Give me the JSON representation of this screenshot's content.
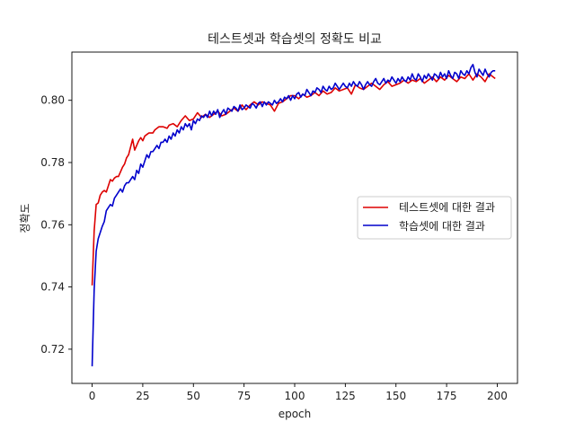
{
  "chart_data": {
    "type": "line",
    "title": "테스트셋과 학습셋의 정확도 비교",
    "xlabel": "epoch",
    "ylabel": "정확도",
    "xlim": [
      -10,
      210
    ],
    "ylim": [
      0.709,
      0.8155
    ],
    "xticks": [
      0,
      25,
      50,
      75,
      100,
      125,
      150,
      175,
      200
    ],
    "yticks": [
      0.72,
      0.74,
      0.76,
      0.78,
      0.8
    ],
    "ytick_labels": [
      "0.72",
      "0.74",
      "0.76",
      "0.78",
      "0.80"
    ],
    "grid": false,
    "legend": "center-right",
    "series": [
      {
        "name": "테스트셋에 대한 결과",
        "color": "#dd0000",
        "points": [
          [
            0,
            0.7405
          ],
          [
            1,
            0.758
          ],
          [
            2,
            0.7665
          ],
          [
            3,
            0.767
          ],
          [
            4,
            0.7695
          ],
          [
            5,
            0.7705
          ],
          [
            6,
            0.771
          ],
          [
            7,
            0.7705
          ],
          [
            8,
            0.7725
          ],
          [
            9,
            0.7745
          ],
          [
            10,
            0.774
          ],
          [
            11,
            0.775
          ],
          [
            12,
            0.7755
          ],
          [
            13,
            0.7755
          ],
          [
            14,
            0.777
          ],
          [
            15,
            0.7785
          ],
          [
            16,
            0.7795
          ],
          [
            17,
            0.7815
          ],
          [
            18,
            0.7825
          ],
          [
            19,
            0.785
          ],
          [
            20,
            0.7875
          ],
          [
            21,
            0.784
          ],
          [
            22,
            0.7855
          ],
          [
            23,
            0.787
          ],
          [
            24,
            0.788
          ],
          [
            25,
            0.787
          ],
          [
            26,
            0.7885
          ],
          [
            27,
            0.789
          ],
          [
            28,
            0.7895
          ],
          [
            29,
            0.7895
          ],
          [
            30,
            0.7895
          ],
          [
            31,
            0.7905
          ],
          [
            32,
            0.791
          ],
          [
            33,
            0.7915
          ],
          [
            35,
            0.7915
          ],
          [
            37,
            0.791
          ],
          [
            38,
            0.792
          ],
          [
            40,
            0.7925
          ],
          [
            42,
            0.7915
          ],
          [
            44,
            0.7935
          ],
          [
            46,
            0.795
          ],
          [
            48,
            0.7935
          ],
          [
            50,
            0.794
          ],
          [
            52,
            0.796
          ],
          [
            54,
            0.7945
          ],
          [
            56,
            0.7955
          ],
          [
            58,
            0.7945
          ],
          [
            60,
            0.7955
          ],
          [
            62,
            0.7965
          ],
          [
            64,
            0.795
          ],
          [
            66,
            0.7955
          ],
          [
            68,
            0.7965
          ],
          [
            70,
            0.7975
          ],
          [
            72,
            0.7965
          ],
          [
            74,
            0.7985
          ],
          [
            76,
            0.797
          ],
          [
            78,
            0.7985
          ],
          [
            80,
            0.7995
          ],
          [
            82,
            0.7985
          ],
          [
            84,
            0.7995
          ],
          [
            86,
            0.799
          ],
          [
            88,
            0.7985
          ],
          [
            90,
            0.7965
          ],
          [
            92,
            0.799
          ],
          [
            94,
            0.7995
          ],
          [
            96,
            0.8005
          ],
          [
            98,
            0.8015
          ],
          [
            100,
            0.8015
          ],
          [
            102,
            0.8005
          ],
          [
            104,
            0.802
          ],
          [
            106,
            0.801
          ],
          [
            108,
            0.8015
          ],
          [
            110,
            0.8025
          ],
          [
            112,
            0.8015
          ],
          [
            114,
            0.803
          ],
          [
            116,
            0.802
          ],
          [
            118,
            0.8025
          ],
          [
            120,
            0.804
          ],
          [
            122,
            0.803
          ],
          [
            124,
            0.8035
          ],
          [
            126,
            0.804
          ],
          [
            128,
            0.802
          ],
          [
            130,
            0.805
          ],
          [
            132,
            0.804
          ],
          [
            134,
            0.8035
          ],
          [
            136,
            0.8045
          ],
          [
            138,
            0.8055
          ],
          [
            140,
            0.8045
          ],
          [
            142,
            0.8035
          ],
          [
            144,
            0.805
          ],
          [
            146,
            0.806
          ],
          [
            148,
            0.8045
          ],
          [
            150,
            0.805
          ],
          [
            152,
            0.8055
          ],
          [
            154,
            0.8065
          ],
          [
            156,
            0.8055
          ],
          [
            158,
            0.8065
          ],
          [
            160,
            0.806
          ],
          [
            162,
            0.807
          ],
          [
            164,
            0.8055
          ],
          [
            166,
            0.8065
          ],
          [
            168,
            0.8075
          ],
          [
            170,
            0.806
          ],
          [
            172,
            0.8075
          ],
          [
            174,
            0.8065
          ],
          [
            176,
            0.808
          ],
          [
            178,
            0.807
          ],
          [
            180,
            0.806
          ],
          [
            182,
            0.8075
          ],
          [
            184,
            0.807
          ],
          [
            186,
            0.8085
          ],
          [
            188,
            0.8065
          ],
          [
            190,
            0.8085
          ],
          [
            192,
            0.8075
          ],
          [
            194,
            0.806
          ],
          [
            196,
            0.8085
          ],
          [
            198,
            0.8075
          ],
          [
            199,
            0.807
          ]
        ]
      },
      {
        "name": "학습셋에 대한 결과",
        "color": "#0000cc",
        "points": [
          [
            0,
            0.7145
          ],
          [
            1,
            0.739
          ],
          [
            2,
            0.7515
          ],
          [
            3,
            0.7555
          ],
          [
            4,
            0.7575
          ],
          [
            5,
            0.7595
          ],
          [
            6,
            0.761
          ],
          [
            7,
            0.7645
          ],
          [
            8,
            0.7655
          ],
          [
            9,
            0.7665
          ],
          [
            10,
            0.766
          ],
          [
            11,
            0.7685
          ],
          [
            12,
            0.7695
          ],
          [
            13,
            0.7705
          ],
          [
            14,
            0.7715
          ],
          [
            15,
            0.7705
          ],
          [
            16,
            0.7725
          ],
          [
            17,
            0.7735
          ],
          [
            18,
            0.7735
          ],
          [
            19,
            0.7745
          ],
          [
            20,
            0.7755
          ],
          [
            21,
            0.7745
          ],
          [
            22,
            0.7775
          ],
          [
            23,
            0.7765
          ],
          [
            24,
            0.7795
          ],
          [
            25,
            0.7785
          ],
          [
            26,
            0.7805
          ],
          [
            27,
            0.7825
          ],
          [
            28,
            0.7815
          ],
          [
            29,
            0.7835
          ],
          [
            30,
            0.7835
          ],
          [
            31,
            0.7845
          ],
          [
            32,
            0.7855
          ],
          [
            33,
            0.7845
          ],
          [
            34,
            0.7865
          ],
          [
            35,
            0.7865
          ],
          [
            36,
            0.7875
          ],
          [
            37,
            0.7865
          ],
          [
            38,
            0.7885
          ],
          [
            39,
            0.7875
          ],
          [
            40,
            0.7895
          ],
          [
            41,
            0.7885
          ],
          [
            42,
            0.7905
          ],
          [
            43,
            0.7895
          ],
          [
            44,
            0.7915
          ],
          [
            45,
            0.7905
          ],
          [
            46,
            0.7925
          ],
          [
            47,
            0.7915
          ],
          [
            48,
            0.7925
          ],
          [
            49,
            0.7905
          ],
          [
            50,
            0.7935
          ],
          [
            51,
            0.7925
          ],
          [
            52,
            0.794
          ],
          [
            53,
            0.7935
          ],
          [
            54,
            0.795
          ],
          [
            55,
            0.7945
          ],
          [
            56,
            0.7955
          ],
          [
            57,
            0.7945
          ],
          [
            58,
            0.7965
          ],
          [
            59,
            0.795
          ],
          [
            60,
            0.7965
          ],
          [
            61,
            0.7955
          ],
          [
            62,
            0.797
          ],
          [
            63,
            0.7945
          ],
          [
            64,
            0.796
          ],
          [
            65,
            0.797
          ],
          [
            66,
            0.7955
          ],
          [
            67,
            0.7975
          ],
          [
            68,
            0.797
          ],
          [
            69,
            0.7965
          ],
          [
            70,
            0.798
          ],
          [
            71,
            0.7975
          ],
          [
            72,
            0.7965
          ],
          [
            73,
            0.7985
          ],
          [
            74,
            0.797
          ],
          [
            75,
            0.7975
          ],
          [
            76,
            0.7985
          ],
          [
            77,
            0.798
          ],
          [
            78,
            0.7975
          ],
          [
            79,
            0.799
          ],
          [
            80,
            0.7985
          ],
          [
            81,
            0.7975
          ],
          [
            82,
            0.799
          ],
          [
            83,
            0.7995
          ],
          [
            84,
            0.798
          ],
          [
            85,
            0.7995
          ],
          [
            86,
            0.7985
          ],
          [
            87,
            0.7995
          ],
          [
            88,
            0.799
          ],
          [
            89,
            0.7985
          ],
          [
            90,
            0.8
          ],
          [
            91,
            0.799
          ],
          [
            92,
            0.7995
          ],
          [
            93,
            0.8005
          ],
          [
            94,
            0.7995
          ],
          [
            95,
            0.801
          ],
          [
            96,
            0.8005
          ],
          [
            97,
            0.8015
          ],
          [
            98,
            0.8
          ],
          [
            99,
            0.8015
          ],
          [
            100,
            0.8005
          ],
          [
            101,
            0.802
          ],
          [
            102,
            0.8025
          ],
          [
            103,
            0.801
          ],
          [
            104,
            0.802
          ],
          [
            105,
            0.8015
          ],
          [
            106,
            0.8035
          ],
          [
            107,
            0.8025
          ],
          [
            108,
            0.8015
          ],
          [
            109,
            0.803
          ],
          [
            110,
            0.8025
          ],
          [
            111,
            0.804
          ],
          [
            112,
            0.8035
          ],
          [
            113,
            0.8025
          ],
          [
            114,
            0.8045
          ],
          [
            115,
            0.8035
          ],
          [
            116,
            0.803
          ],
          [
            117,
            0.8045
          ],
          [
            118,
            0.8035
          ],
          [
            119,
            0.804
          ],
          [
            120,
            0.8055
          ],
          [
            121,
            0.8045
          ],
          [
            122,
            0.8035
          ],
          [
            123,
            0.8045
          ],
          [
            124,
            0.8055
          ],
          [
            125,
            0.8045
          ],
          [
            126,
            0.804
          ],
          [
            127,
            0.8055
          ],
          [
            128,
            0.8045
          ],
          [
            129,
            0.806
          ],
          [
            130,
            0.805
          ],
          [
            131,
            0.8045
          ],
          [
            132,
            0.806
          ],
          [
            133,
            0.805
          ],
          [
            134,
            0.8035
          ],
          [
            135,
            0.805
          ],
          [
            136,
            0.806
          ],
          [
            137,
            0.805
          ],
          [
            138,
            0.8045
          ],
          [
            139,
            0.806
          ],
          [
            140,
            0.807
          ],
          [
            141,
            0.8055
          ],
          [
            142,
            0.805
          ],
          [
            143,
            0.806
          ],
          [
            144,
            0.807
          ],
          [
            145,
            0.8055
          ],
          [
            146,
            0.8065
          ],
          [
            147,
            0.806
          ],
          [
            148,
            0.8075
          ],
          [
            149,
            0.8065
          ],
          [
            150,
            0.8055
          ],
          [
            151,
            0.807
          ],
          [
            152,
            0.806
          ],
          [
            153,
            0.8075
          ],
          [
            154,
            0.8065
          ],
          [
            155,
            0.806
          ],
          [
            156,
            0.8075
          ],
          [
            157,
            0.8065
          ],
          [
            158,
            0.8085
          ],
          [
            159,
            0.807
          ],
          [
            160,
            0.8065
          ],
          [
            161,
            0.8085
          ],
          [
            162,
            0.8075
          ],
          [
            163,
            0.806
          ],
          [
            164,
            0.808
          ],
          [
            165,
            0.807
          ],
          [
            166,
            0.8085
          ],
          [
            167,
            0.8075
          ],
          [
            168,
            0.8065
          ],
          [
            169,
            0.8085
          ],
          [
            170,
            0.808
          ],
          [
            171,
            0.807
          ],
          [
            172,
            0.809
          ],
          [
            173,
            0.8075
          ],
          [
            174,
            0.8085
          ],
          [
            175,
            0.807
          ],
          [
            176,
            0.8095
          ],
          [
            177,
            0.808
          ],
          [
            178,
            0.807
          ],
          [
            179,
            0.809
          ],
          [
            180,
            0.8085
          ],
          [
            181,
            0.807
          ],
          [
            182,
            0.8095
          ],
          [
            183,
            0.8085
          ],
          [
            184,
            0.808
          ],
          [
            185,
            0.8095
          ],
          [
            186,
            0.8085
          ],
          [
            187,
            0.8105
          ],
          [
            188,
            0.8115
          ],
          [
            189,
            0.809
          ],
          [
            190,
            0.8075
          ],
          [
            191,
            0.81
          ],
          [
            192,
            0.809
          ],
          [
            193,
            0.808
          ],
          [
            194,
            0.81
          ],
          [
            195,
            0.8085
          ],
          [
            196,
            0.8075
          ],
          [
            197,
            0.809
          ],
          [
            198,
            0.8095
          ],
          [
            199,
            0.8095
          ]
        ]
      }
    ]
  }
}
